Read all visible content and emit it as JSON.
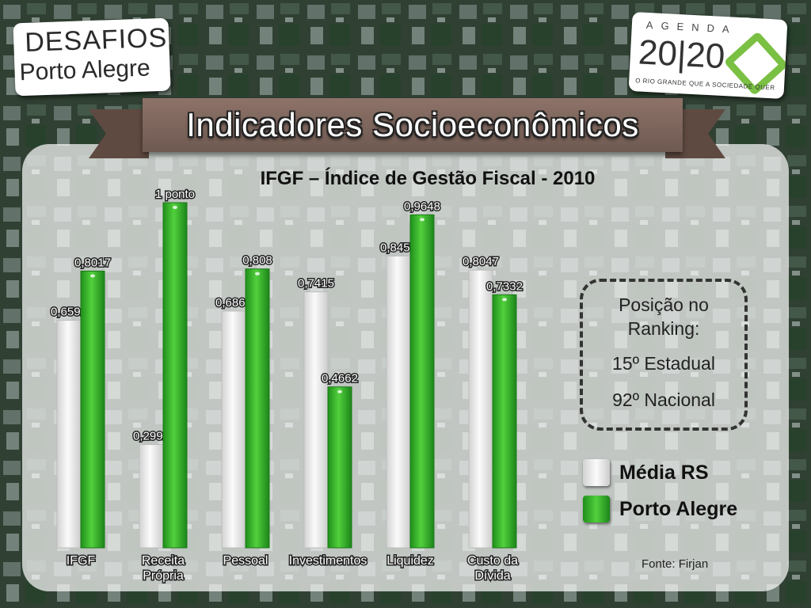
{
  "logos": {
    "left": {
      "line1": "DESAFIOS",
      "line2": "Porto Alegre"
    },
    "right": {
      "top": "AGENDA",
      "year": "20|20",
      "tagline": "O RIO GRANDE QUE A SOCIEDADE QUER"
    }
  },
  "banner": {
    "title": "Indicadores Socioeconômicos"
  },
  "chart_data": {
    "type": "bar",
    "title": "IFGF – Índice de Gestão Fiscal - 2010",
    "categories": [
      [
        "IFGF"
      ],
      [
        "Receita",
        "Própria"
      ],
      [
        "Pessoal"
      ],
      [
        "Investimentos"
      ],
      [
        "Liquidez"
      ],
      [
        "Custo da",
        "Dívida"
      ]
    ],
    "series": [
      {
        "name": "Média RS",
        "color": "#efefef",
        "values": [
          0.6592,
          0.2992,
          0.686,
          0.7415,
          0.8455,
          0.8047
        ],
        "labels": [
          "0,6592",
          "0,2992",
          "0,6860",
          "0,7415",
          "0,8455",
          "0,8047"
        ]
      },
      {
        "name": "Porto Alegre",
        "color": "#33b02a",
        "values": [
          0.8017,
          1.0,
          0.808,
          0.4662,
          0.9648,
          0.7332
        ],
        "labels": [
          "0,8017",
          "1 ponto",
          "0,808",
          "0,4662",
          "0,9648",
          "0,7332"
        ]
      }
    ],
    "ylim": [
      0,
      1
    ],
    "xlabel": "",
    "ylabel": "",
    "grid": false,
    "legend_placement": "right"
  },
  "ranking": {
    "heading": "Posição no Ranking:",
    "estadual": "15º Estadual",
    "nacional": "92º Nacional"
  },
  "source": "Fonte: Firjan"
}
